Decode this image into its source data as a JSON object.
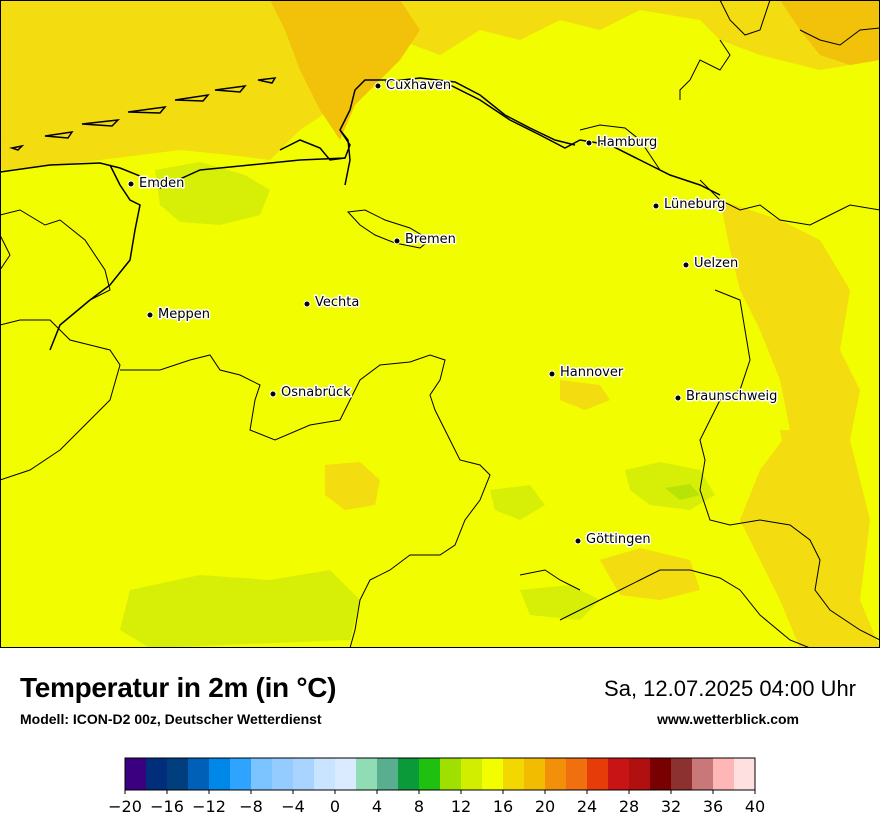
{
  "map": {
    "cities": [
      {
        "name": "Cuxhaven"
      },
      {
        "name": "Hamburg"
      },
      {
        "name": "Emden"
      },
      {
        "name": "Lüneburg"
      },
      {
        "name": "Bremen"
      },
      {
        "name": "Uelzen"
      },
      {
        "name": "Vechta"
      },
      {
        "name": "Meppen"
      },
      {
        "name": "Hannover"
      },
      {
        "name": "Osnabrück"
      },
      {
        "name": "Braunschweig"
      },
      {
        "name": "Göttingen"
      }
    ],
    "colors": {
      "base": "#f2fd00",
      "warm": "#f3dc0f",
      "warmer": "#f2c10a",
      "cool": "#d7ef07",
      "cooler": "#b8e307",
      "line": "#000000"
    }
  },
  "footer": {
    "title": "Temperatur in 2m (in °C)",
    "model": "Modell: ICON-D2 00z, Deutscher Wetterdienst",
    "datetime": "Sa, 12.07.2025 04:00 Uhr",
    "website": "www.wetterblick.com"
  },
  "legend": {
    "min": -20,
    "max": 40,
    "ticks": [
      "−20",
      "−16",
      "−12",
      "−8",
      "−4",
      "0",
      "4",
      "8",
      "12",
      "16",
      "20",
      "24",
      "28",
      "32",
      "36",
      "40"
    ],
    "colors": [
      "#3a0080",
      "#002e7a",
      "#003e7e",
      "#0060b8",
      "#0088e8",
      "#2ea4ff",
      "#7cc4ff",
      "#94ccff",
      "#a8d4ff",
      "#c8e4ff",
      "#daeaff",
      "#90dcb4",
      "#58ae8e",
      "#0a9a3a",
      "#20c010",
      "#a0e000",
      "#d2ee00",
      "#f2fd00",
      "#f2d800",
      "#f2bc00",
      "#f2900a",
      "#f07010",
      "#e63c0a",
      "#c81414",
      "#b01010",
      "#780000",
      "#8c3030",
      "#c87878",
      "#ffb6b6",
      "#ffe0e0"
    ]
  }
}
